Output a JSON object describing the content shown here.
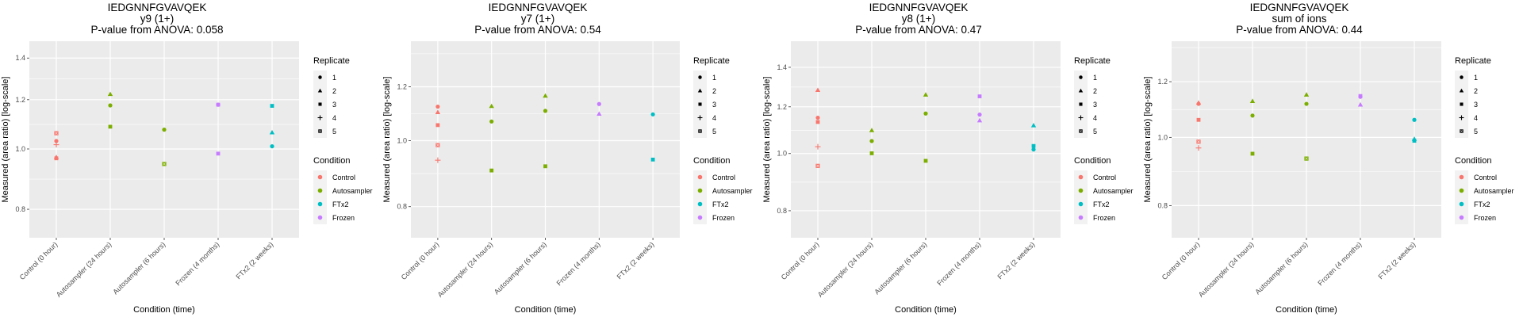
{
  "chart_data": [
    {
      "type": "scatter",
      "title": "IEDGNNFGVAVQEK",
      "subtitle": "y9 (1+)",
      "pvalue_label": "P-value from ANOVA: 0.058",
      "xlabel": "Condition (time)",
      "ylabel": "Measured (area ratio) [log-scale]",
      "yscale": "log",
      "ylim": [
        0.72,
        1.49
      ],
      "yticks": [
        0.8,
        1.0,
        1.2,
        1.4
      ],
      "ytick_labels": [
        "0.8",
        "1.0",
        "1.2",
        "1.4"
      ],
      "categories": [
        "Control (0 hour)",
        "Autosampler (24 hours)",
        "Autosampler (6 hours)",
        "Frozen (4 months)",
        "FTx2 (2 weeks)"
      ],
      "points": [
        {
          "x": 0,
          "y": 1.06,
          "replicate": 5,
          "condition": "Control"
        },
        {
          "x": 0,
          "y": 1.03,
          "replicate": 1,
          "condition": "Control"
        },
        {
          "x": 0,
          "y": 1.016,
          "replicate": 4,
          "condition": "Control"
        },
        {
          "x": 0,
          "y": 0.966,
          "replicate": 3,
          "condition": "Control"
        },
        {
          "x": 0,
          "y": 0.97,
          "replicate": 2,
          "condition": "Control"
        },
        {
          "x": 1,
          "y": 1.225,
          "replicate": 2,
          "condition": "Autosampler"
        },
        {
          "x": 1,
          "y": 1.175,
          "replicate": 1,
          "condition": "Autosampler"
        },
        {
          "x": 1,
          "y": 1.086,
          "replicate": 3,
          "condition": "Autosampler"
        },
        {
          "x": 2,
          "y": 1.074,
          "replicate": 1,
          "condition": "Autosampler"
        },
        {
          "x": 2,
          "y": 0.946,
          "replicate": 3,
          "condition": "Autosampler"
        },
        {
          "x": 2,
          "y": 0.946,
          "replicate": 5,
          "condition": "Autosampler"
        },
        {
          "x": 3,
          "y": 1.178,
          "replicate": 1,
          "condition": "Frozen"
        },
        {
          "x": 3,
          "y": 1.178,
          "replicate": 3,
          "condition": "Frozen"
        },
        {
          "x": 3,
          "y": 0.983,
          "replicate": 3,
          "condition": "Frozen"
        },
        {
          "x": 4,
          "y": 1.173,
          "replicate": 3,
          "condition": "FTx2"
        },
        {
          "x": 4,
          "y": 1.063,
          "replicate": 2,
          "condition": "FTx2"
        },
        {
          "x": 4,
          "y": 1.01,
          "replicate": 1,
          "condition": "FTx2"
        }
      ],
      "grid": true,
      "legend": "right"
    },
    {
      "type": "scatter",
      "title": "IEDGNNFGVAVQEK",
      "subtitle": "y7 (1+)",
      "pvalue_label": "P-value from ANOVA: 0.54",
      "xlabel": "Condition (time)",
      "ylabel": "Measured (area ratio) [log-scale]",
      "yscale": "log",
      "ylim": [
        0.72,
        1.4
      ],
      "yticks": [
        0.8,
        1.0,
        1.2
      ],
      "ytick_labels": [
        "0.8",
        "1.0",
        "1.2"
      ],
      "categories": [
        "Control (0 hour)",
        "Autosampler (24 hours)",
        "Autosampler (6 hours)",
        "Frozen (4 months)",
        "FTx2 (2 weeks)"
      ],
      "points": [
        {
          "x": 0,
          "y": 1.122,
          "replicate": 1,
          "condition": "Control"
        },
        {
          "x": 0,
          "y": 1.101,
          "replicate": 2,
          "condition": "Control"
        },
        {
          "x": 0,
          "y": 1.054,
          "replicate": 3,
          "condition": "Control"
        },
        {
          "x": 0,
          "y": 0.985,
          "replicate": 5,
          "condition": "Control"
        },
        {
          "x": 0,
          "y": 0.936,
          "replicate": 4,
          "condition": "Control"
        },
        {
          "x": 1,
          "y": 1.124,
          "replicate": 2,
          "condition": "Autosampler"
        },
        {
          "x": 1,
          "y": 1.067,
          "replicate": 1,
          "condition": "Autosampler"
        },
        {
          "x": 1,
          "y": 0.904,
          "replicate": 3,
          "condition": "Autosampler"
        },
        {
          "x": 2,
          "y": 1.164,
          "replicate": 2,
          "condition": "Autosampler"
        },
        {
          "x": 2,
          "y": 1.106,
          "replicate": 1,
          "condition": "Autosampler"
        },
        {
          "x": 2,
          "y": 0.917,
          "replicate": 3,
          "condition": "Autosampler"
        },
        {
          "x": 3,
          "y": 1.132,
          "replicate": 1,
          "condition": "Frozen"
        },
        {
          "x": 3,
          "y": 1.095,
          "replicate": 2,
          "condition": "Frozen"
        },
        {
          "x": 4,
          "y": 1.093,
          "replicate": 1,
          "condition": "FTx2"
        },
        {
          "x": 4,
          "y": 0.938,
          "replicate": 3,
          "condition": "FTx2"
        }
      ],
      "grid": true,
      "legend": "right"
    },
    {
      "type": "scatter",
      "title": "IEDGNNFGVAVQEK",
      "subtitle": "y8 (1+)",
      "pvalue_label": "P-value from ANOVA: 0.47",
      "xlabel": "Condition (time)",
      "ylabel": "Measured (area ratio) [log-scale]",
      "yscale": "log",
      "ylim": [
        0.72,
        1.55
      ],
      "yticks": [
        0.8,
        1.0,
        1.2,
        1.4
      ],
      "ytick_labels": [
        "0.8",
        "1.0",
        "1.2",
        "1.4"
      ],
      "categories": [
        "Control (0 hour)",
        "Autosampler (24 hours)",
        "Autosampler (6 hours)",
        "Frozen (4 months)",
        "FTx2 (2 weeks)"
      ],
      "points": [
        {
          "x": 0,
          "y": 1.281,
          "replicate": 2,
          "condition": "Control"
        },
        {
          "x": 0,
          "y": 1.15,
          "replicate": 1,
          "condition": "Control"
        },
        {
          "x": 0,
          "y": 1.131,
          "replicate": 3,
          "condition": "Control"
        },
        {
          "x": 0,
          "y": 1.027,
          "replicate": 4,
          "condition": "Control"
        },
        {
          "x": 0,
          "y": 0.953,
          "replicate": 5,
          "condition": "Control"
        },
        {
          "x": 1,
          "y": 1.095,
          "replicate": 2,
          "condition": "Autosampler"
        },
        {
          "x": 1,
          "y": 1.05,
          "replicate": 1,
          "condition": "Autosampler"
        },
        {
          "x": 1,
          "y": 1.001,
          "replicate": 3,
          "condition": "Autosampler"
        },
        {
          "x": 2,
          "y": 1.258,
          "replicate": 2,
          "condition": "Autosampler"
        },
        {
          "x": 2,
          "y": 1.169,
          "replicate": 1,
          "condition": "Autosampler"
        },
        {
          "x": 2,
          "y": 0.972,
          "replicate": 3,
          "condition": "Autosampler"
        },
        {
          "x": 3,
          "y": 1.25,
          "replicate": 3,
          "condition": "Frozen"
        },
        {
          "x": 3,
          "y": 1.164,
          "replicate": 1,
          "condition": "Frozen"
        },
        {
          "x": 3,
          "y": 1.138,
          "replicate": 2,
          "condition": "Frozen"
        },
        {
          "x": 4,
          "y": 1.116,
          "replicate": 2,
          "condition": "FTx2"
        },
        {
          "x": 4,
          "y": 1.03,
          "replicate": 3,
          "condition": "FTx2"
        },
        {
          "x": 4,
          "y": 1.016,
          "replicate": 1,
          "condition": "FTx2"
        }
      ],
      "grid": true,
      "legend": "right"
    },
    {
      "type": "scatter",
      "title": "IEDGNNFGVAVQEK",
      "subtitle": "sum of ions",
      "pvalue_label": "P-value from ANOVA: 0.44",
      "xlabel": "Condition (time)",
      "ylabel": "Measured (area ratio) [log-scale]",
      "yscale": "log",
      "ylim": [
        0.72,
        1.37
      ],
      "yticks": [
        0.8,
        1.0,
        1.2
      ],
      "ytick_labels": [
        "0.8",
        "1.0",
        "1.2"
      ],
      "categories": [
        "Control (0 hour)",
        "Autosampler (24 hours)",
        "Autosampler (6 hours)",
        "Frozen (4 months)",
        "FTx2 (2 weeks)"
      ],
      "points": [
        {
          "x": 0,
          "y": 1.12,
          "replicate": 2,
          "condition": "Control"
        },
        {
          "x": 0,
          "y": 1.116,
          "replicate": 1,
          "condition": "Control"
        },
        {
          "x": 0,
          "y": 1.059,
          "replicate": 3,
          "condition": "Control"
        },
        {
          "x": 0,
          "y": 0.986,
          "replicate": 5,
          "condition": "Control"
        },
        {
          "x": 0,
          "y": 0.966,
          "replicate": 4,
          "condition": "Control"
        },
        {
          "x": 1,
          "y": 1.126,
          "replicate": 2,
          "condition": "Autosampler"
        },
        {
          "x": 1,
          "y": 1.074,
          "replicate": 1,
          "condition": "Autosampler"
        },
        {
          "x": 1,
          "y": 0.948,
          "replicate": 3,
          "condition": "Autosampler"
        },
        {
          "x": 2,
          "y": 1.15,
          "replicate": 2,
          "condition": "Autosampler"
        },
        {
          "x": 2,
          "y": 1.116,
          "replicate": 1,
          "condition": "Autosampler"
        },
        {
          "x": 2,
          "y": 0.933,
          "replicate": 5,
          "condition": "Autosampler"
        },
        {
          "x": 3,
          "y": 1.142,
          "replicate": 1,
          "condition": "Frozen"
        },
        {
          "x": 3,
          "y": 1.145,
          "replicate": 3,
          "condition": "Frozen"
        },
        {
          "x": 3,
          "y": 1.113,
          "replicate": 2,
          "condition": "Frozen"
        },
        {
          "x": 4,
          "y": 1.059,
          "replicate": 1,
          "condition": "FTx2"
        },
        {
          "x": 4,
          "y": 0.995,
          "replicate": 2,
          "condition": "FTx2"
        },
        {
          "x": 4,
          "y": 0.989,
          "replicate": 3,
          "condition": "FTx2"
        }
      ],
      "grid": true,
      "legend": "right"
    }
  ],
  "legends": {
    "replicate": {
      "title": "Replicate",
      "items": [
        {
          "label": "1",
          "shape": "circle"
        },
        {
          "label": "2",
          "shape": "triangle"
        },
        {
          "label": "3",
          "shape": "square"
        },
        {
          "label": "4",
          "shape": "plus"
        },
        {
          "label": "5",
          "shape": "square-x"
        }
      ]
    },
    "condition": {
      "title": "Condition",
      "items": [
        {
          "label": "Control",
          "color": "#F8766D"
        },
        {
          "label": "Autosampler",
          "color": "#7CAE00"
        },
        {
          "label": "FTx2",
          "color": "#00BFC4"
        },
        {
          "label": "Frozen",
          "color": "#C77CFF"
        }
      ]
    }
  },
  "colors": {
    "Control": "#F8766D",
    "Autosampler": "#7CAE00",
    "FTx2": "#00BFC4",
    "Frozen": "#C77CFF",
    "panel_bg": "#EBEBEB",
    "grid": "#FFFFFF"
  }
}
